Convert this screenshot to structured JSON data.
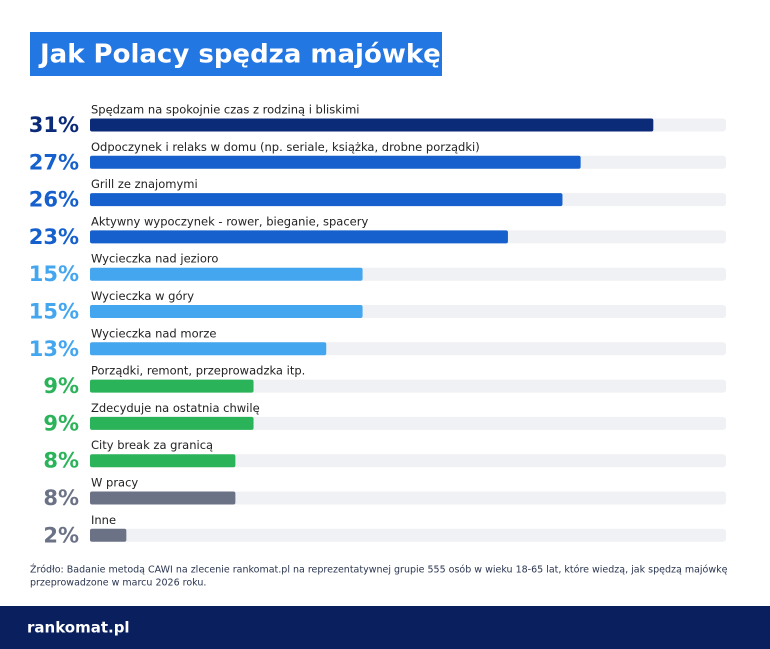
{
  "chart_data": {
    "type": "bar",
    "orientation": "horizontal",
    "title": "Jak Polacy spędza majówkę?",
    "categories": [
      "Spędzam na spokojnie czas z rodziną i bliskimi",
      "Odpoczynek i relaks w domu (np. seriale, książka, drobne porządki)",
      "Grill ze znajomymi",
      "Aktywny wypoczynek - rower, bieganie, spacery",
      "Wycieczka nad jezioro",
      "Wycieczka w góry",
      "Wycieczka nad morze",
      "Porządki, remont, przeprowadzka itp.",
      "Zdecyduje na ostatnia chwilę",
      "City break za granicą",
      "W pracy",
      "Inne"
    ],
    "values": [
      31,
      27,
      26,
      23,
      15,
      15,
      13,
      9,
      9,
      8,
      8,
      2
    ],
    "value_labels": [
      "31%",
      "27%",
      "26%",
      "23%",
      "15%",
      "15%",
      "13%",
      "9%",
      "9%",
      "8%",
      "8%",
      "2%"
    ],
    "colors": [
      "#0b2a78",
      "#1560cc",
      "#1560cc",
      "#1560cc",
      "#43a6ef",
      "#43a6ef",
      "#43a6ef",
      "#2bb35a",
      "#2bb35a",
      "#2bb35a",
      "#6b7286",
      "#6b7286"
    ],
    "xlim": [
      0,
      35
    ],
    "source": [
      "Źródło: Badanie metodą CAWI na zlecenie rankomat.pl na reprezentatywnej grupie 555 osób w wieku 18-65 lat, które wiedzą, jak spędzą majówkę",
      "przeprowadzone w marcu 2026 roku."
    ],
    "logo": "rankomat.pl"
  }
}
